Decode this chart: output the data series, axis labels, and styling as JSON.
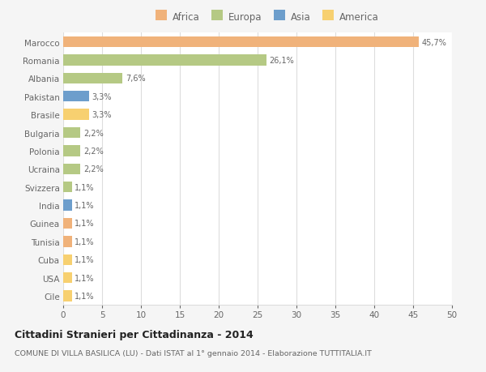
{
  "categories": [
    "Marocco",
    "Romania",
    "Albania",
    "Pakistan",
    "Brasile",
    "Bulgaria",
    "Polonia",
    "Ucraina",
    "Svizzera",
    "India",
    "Guinea",
    "Tunisia",
    "Cuba",
    "USA",
    "Cile"
  ],
  "values": [
    45.7,
    26.1,
    7.6,
    3.3,
    3.3,
    2.2,
    2.2,
    2.2,
    1.1,
    1.1,
    1.1,
    1.1,
    1.1,
    1.1,
    1.1
  ],
  "labels": [
    "45,7%",
    "26,1%",
    "7,6%",
    "3,3%",
    "3,3%",
    "2,2%",
    "2,2%",
    "2,2%",
    "1,1%",
    "1,1%",
    "1,1%",
    "1,1%",
    "1,1%",
    "1,1%",
    "1,1%"
  ],
  "colors": [
    "#f0b27a",
    "#b5c984",
    "#b5c984",
    "#6d9ecc",
    "#f7d070",
    "#b5c984",
    "#b5c984",
    "#b5c984",
    "#b5c984",
    "#6d9ecc",
    "#f0b27a",
    "#f0b27a",
    "#f7d070",
    "#f7d070",
    "#f7d070"
  ],
  "legend_labels": [
    "Africa",
    "Europa",
    "Asia",
    "America"
  ],
  "legend_colors": [
    "#f0b27a",
    "#b5c984",
    "#6d9ecc",
    "#f7d070"
  ],
  "xlim": [
    0,
    50
  ],
  "xticks": [
    0,
    5,
    10,
    15,
    20,
    25,
    30,
    35,
    40,
    45,
    50
  ],
  "title": "Cittadini Stranieri per Cittadinanza - 2014",
  "subtitle": "COMUNE DI VILLA BASILICA (LU) - Dati ISTAT al 1° gennaio 2014 - Elaborazione TUTTITALIA.IT",
  "bg_color": "#f5f5f5",
  "bar_bg_color": "#ffffff",
  "grid_color": "#dddddd",
  "text_color": "#666666",
  "title_color": "#222222"
}
